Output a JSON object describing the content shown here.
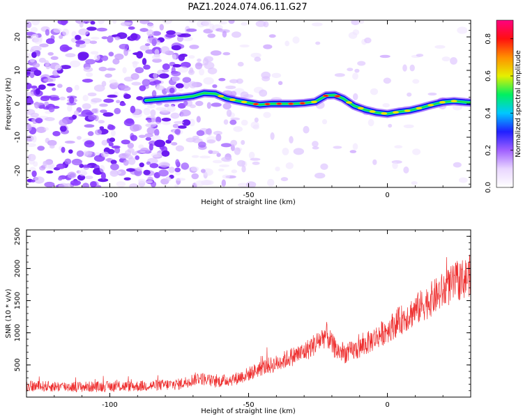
{
  "title": "PAZ1.2024.074.06.11.G27",
  "chart_data": [
    {
      "type": "heatmap",
      "xlabel": "Height of straight line (km)",
      "ylabel": "Frequency (Hz)",
      "xlim": [
        -130,
        30
      ],
      "ylim": [
        -25,
        25
      ],
      "x_ticks": [
        -100,
        -50,
        0
      ],
      "y_ticks": [
        -20,
        -10,
        0,
        10,
        20
      ],
      "colorbar": {
        "label": "Normalized spectral amplitude",
        "range": [
          0.0,
          0.9
        ],
        "ticks": [
          "0.0",
          "0.2",
          "0.4",
          "0.6",
          "0.8"
        ],
        "colors": [
          "#ffffff",
          "#e9d6ff",
          "#a060ff",
          "#2020ff",
          "#00c8ff",
          "#00f060",
          "#e6f000",
          "#ff9000",
          "#ff1010",
          "#ff0080"
        ]
      },
      "signal_ridge": {
        "x": [
          -87,
          -80,
          -75,
          -70,
          -66,
          -62,
          -58,
          -54,
          -50,
          -46,
          -42,
          -38,
          -34,
          -30,
          -26,
          -22,
          -19,
          -16,
          -12,
          -8,
          -4,
          0,
          4,
          8,
          12,
          16,
          20,
          24,
          28,
          30
        ],
        "frequency": [
          1.0,
          1.5,
          1.8,
          2.3,
          3.2,
          3.0,
          1.6,
          0.9,
          0.3,
          -0.3,
          0.0,
          0.0,
          0.0,
          0.2,
          0.6,
          2.5,
          2.6,
          1.6,
          -0.6,
          -1.8,
          -2.6,
          -3.0,
          -2.4,
          -2.0,
          -1.2,
          -0.3,
          0.5,
          0.8,
          0.5,
          0.4
        ]
      }
    },
    {
      "type": "line",
      "xlabel": "Height of straight line (km)",
      "ylabel": "SNR (10 * v/v)",
      "xlim": [
        -130,
        30
      ],
      "ylim": [
        0,
        2600
      ],
      "x_ticks": [
        -100,
        -50,
        0
      ],
      "y_ticks": [
        500,
        1000,
        1500,
        2000,
        2500
      ],
      "color": "#ee3030",
      "trend": {
        "x": [
          -130,
          -110,
          -90,
          -75,
          -68,
          -65,
          -62,
          -55,
          -50,
          -45,
          -40,
          -35,
          -30,
          -25,
          -22,
          -20,
          -18,
          -15,
          -10,
          -5,
          0,
          5,
          10,
          15,
          20,
          25,
          28,
          30
        ],
        "y": [
          170,
          160,
          170,
          200,
          300,
          270,
          240,
          280,
          360,
          460,
          520,
          620,
          700,
          860,
          980,
          820,
          720,
          680,
          760,
          900,
          1050,
          1200,
          1350,
          1500,
          1650,
          1800,
          1850,
          1900
        ]
      }
    }
  ]
}
